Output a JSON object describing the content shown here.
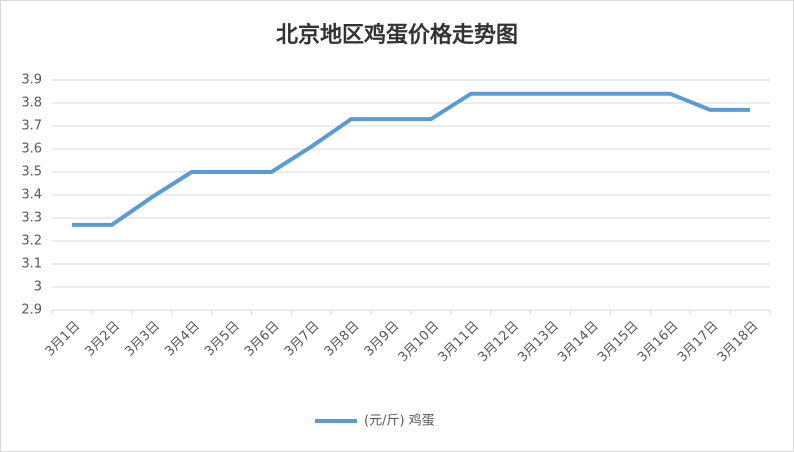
{
  "chart_data": {
    "type": "line",
    "title": "北京地区鸡蛋价格走势图",
    "categories": [
      "3月1日",
      "3月2日",
      "3月3日",
      "3月4日",
      "3月5日",
      "3月6日",
      "3月7日",
      "3月8日",
      "3月9日",
      "3月10日",
      "3月11日",
      "3月12日",
      "3月13日",
      "3月14日",
      "3月15日",
      "3月16日",
      "3月17日",
      "3月18日"
    ],
    "series": [
      {
        "name": "(元/斤) 鸡蛋",
        "color": "#5b9bd5",
        "values": [
          3.27,
          3.27,
          3.39,
          3.5,
          3.5,
          3.5,
          3.61,
          3.73,
          3.73,
          3.73,
          3.84,
          3.84,
          3.84,
          3.84,
          3.84,
          3.84,
          3.77,
          3.77
        ]
      }
    ],
    "ylim": [
      2.9,
      3.9
    ],
    "yticks": [
      2.9,
      3,
      3.1,
      3.2,
      3.3,
      3.4,
      3.5,
      3.6,
      3.7,
      3.8,
      3.9
    ],
    "grid": true,
    "legend": "bottom"
  }
}
